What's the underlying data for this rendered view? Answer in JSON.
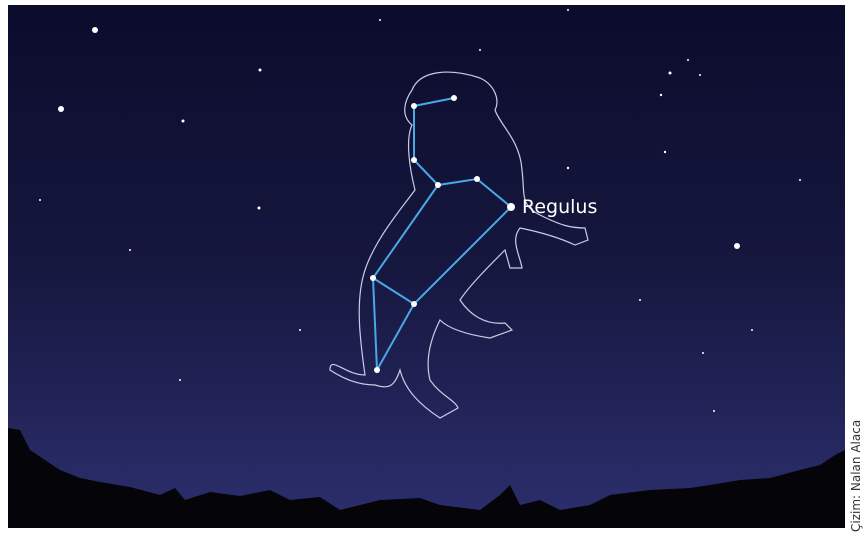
{
  "star_label": "Regulus",
  "credit": "Çizim: Nalan Alaca"
}
